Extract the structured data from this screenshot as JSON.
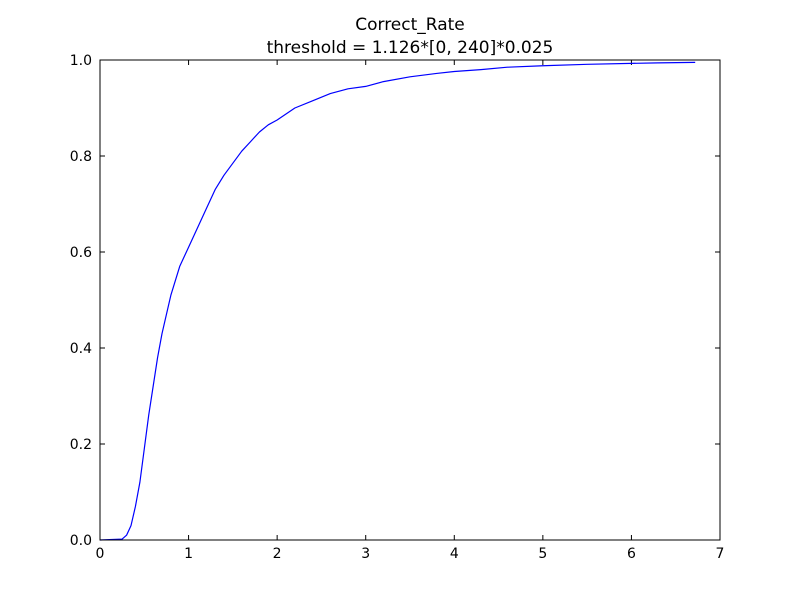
{
  "chart_data": {
    "type": "line",
    "title": "Correct_Rate",
    "subtitle": "threshold = 1.126*[0, 240]*0.025",
    "xlabel": "",
    "ylabel": "",
    "xlim": [
      0,
      7
    ],
    "ylim": [
      0,
      1.0
    ],
    "xticks": [
      "0",
      "1",
      "2",
      "3",
      "4",
      "5",
      "6",
      "7"
    ],
    "yticks": [
      "0.0",
      "0.2",
      "0.4",
      "0.6",
      "0.8",
      "1.0"
    ],
    "grid": false,
    "line_color": "#0000ff",
    "series": [
      {
        "x": [
          0.0,
          0.25,
          0.3,
          0.35,
          0.4,
          0.45,
          0.5,
          0.55,
          0.6,
          0.65,
          0.7,
          0.75,
          0.8,
          0.9,
          1.0,
          1.1,
          1.2,
          1.3,
          1.4,
          1.5,
          1.6,
          1.7,
          1.8,
          1.9,
          2.0,
          2.2,
          2.4,
          2.6,
          2.8,
          3.0,
          3.2,
          3.5,
          3.8,
          4.0,
          4.3,
          4.6,
          5.0,
          5.5,
          6.0,
          6.3,
          6.72
        ],
        "y": [
          0.0,
          0.002,
          0.01,
          0.03,
          0.07,
          0.12,
          0.19,
          0.26,
          0.32,
          0.38,
          0.43,
          0.47,
          0.51,
          0.57,
          0.61,
          0.65,
          0.69,
          0.73,
          0.76,
          0.785,
          0.81,
          0.83,
          0.85,
          0.865,
          0.875,
          0.9,
          0.915,
          0.93,
          0.94,
          0.945,
          0.955,
          0.965,
          0.972,
          0.976,
          0.98,
          0.985,
          0.988,
          0.991,
          0.993,
          0.994,
          0.995
        ]
      }
    ]
  }
}
